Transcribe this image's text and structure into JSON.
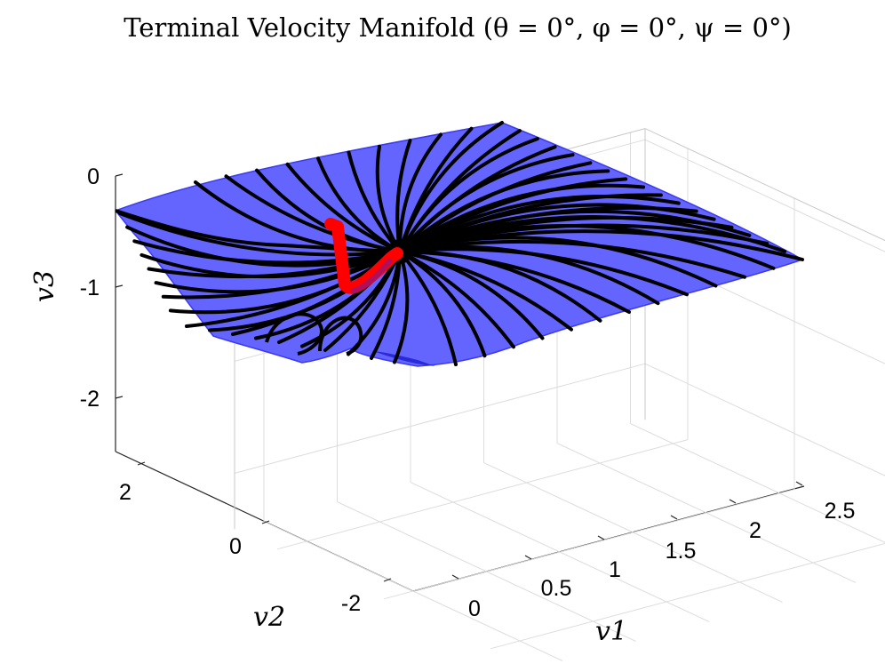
{
  "chart_data": {
    "type": "surface3d",
    "title": "Terminal Velocity Manifold (θ = 0°, φ = 0°, ψ = 0°)",
    "xlabel": "v1",
    "ylabel": "v2",
    "zlabel": "v3",
    "xlim": [
      -0.2,
      2.6
    ],
    "ylim": [
      -2.8,
      2.8
    ],
    "zlim": [
      -2.5,
      0.1
    ],
    "x_ticks": [
      0,
      0.5,
      1,
      1.5,
      2,
      2.5
    ],
    "x_tick_labels": [
      "0",
      "0.5",
      "1",
      "1.5",
      "2",
      "2.5"
    ],
    "y_ticks": [
      -2,
      0,
      2
    ],
    "y_tick_labels": [
      "-2",
      "0",
      "2"
    ],
    "z_ticks": [
      -2,
      -1,
      0
    ],
    "z_tick_labels": [
      "-2",
      "-1",
      "0"
    ],
    "grid": true,
    "colors": {
      "surface": "#6464ff",
      "surface_edge": "#3a3af0",
      "streamlines": "#000000",
      "highlight_trajectory": "#ff0000",
      "grid": "#d9d9d9"
    },
    "series": [
      {
        "name": "",
        "type": "curve",
        "color": "#ff0000",
        "points": [
          [
            0.0,
            0.4,
            -0.55
          ],
          [
            0.05,
            0.25,
            -0.8
          ],
          [
            0.1,
            0.1,
            -1.0
          ],
          [
            0.2,
            -0.1,
            -1.0
          ],
          [
            0.35,
            -0.35,
            -0.9
          ],
          [
            0.5,
            -0.6,
            -0.78
          ]
        ]
      }
    ]
  }
}
